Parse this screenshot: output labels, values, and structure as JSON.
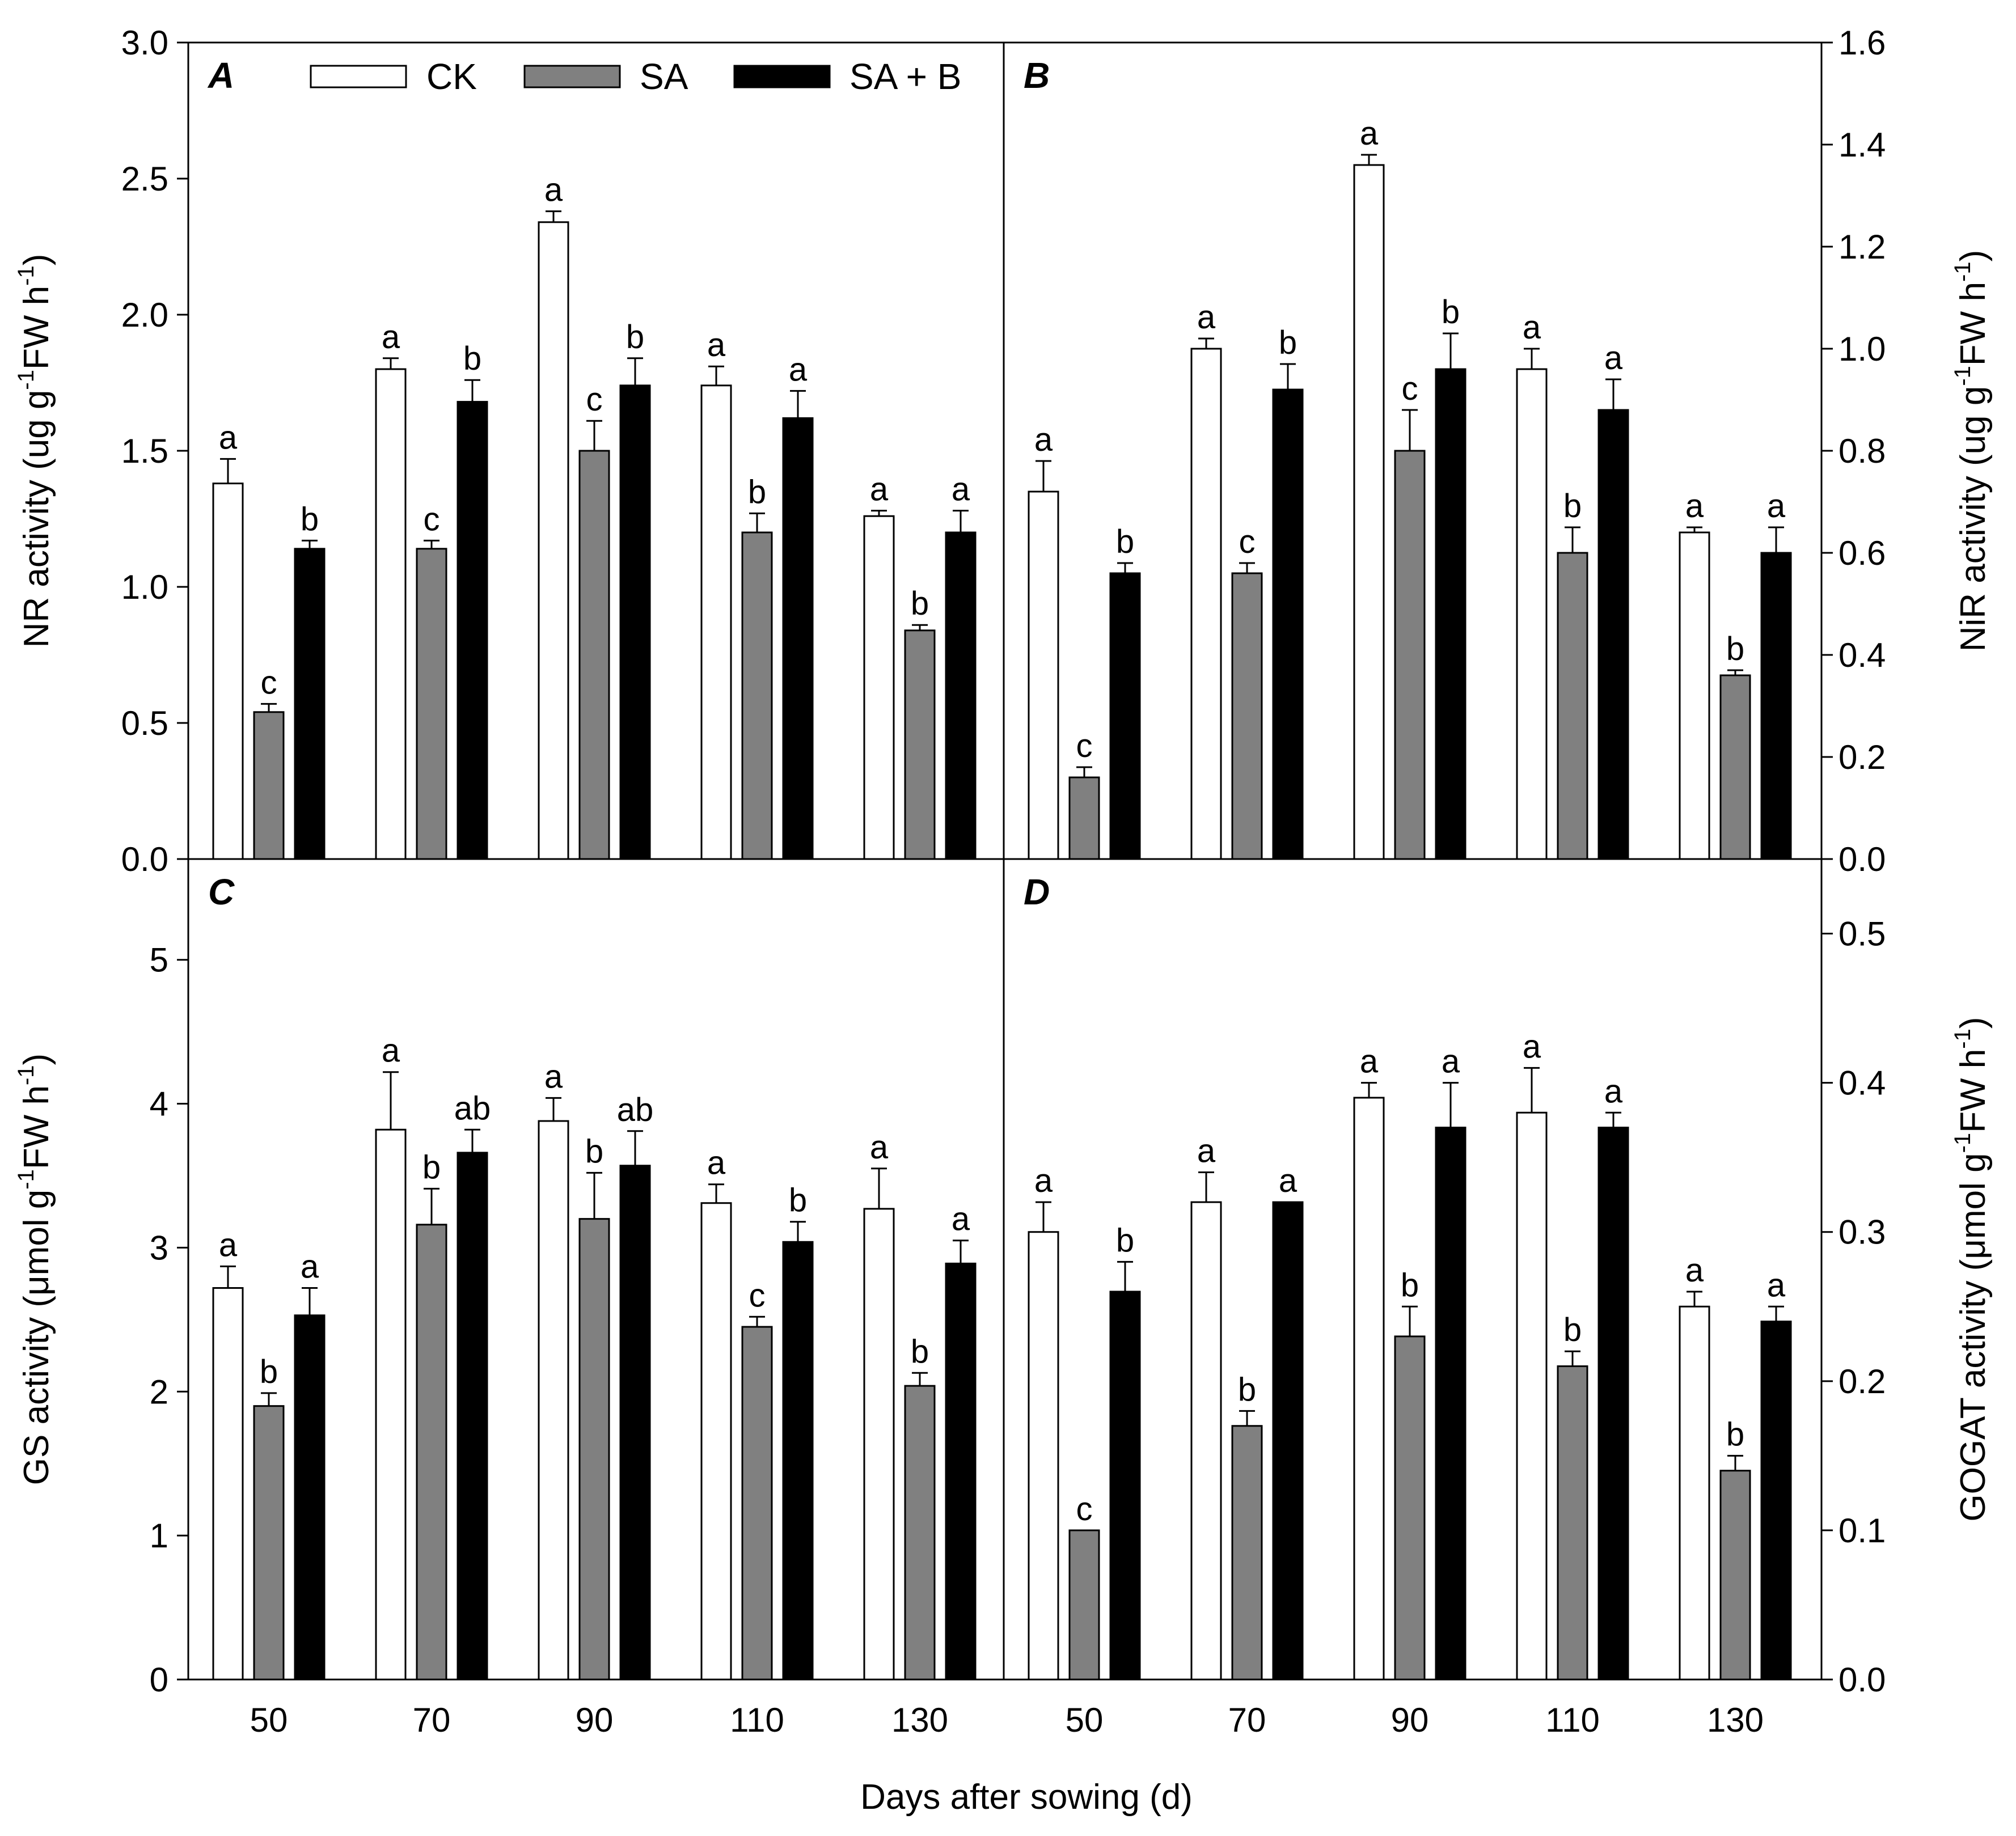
{
  "figure": {
    "xlabel": "Days after sowing (d)"
  },
  "legend": [
    {
      "name": "CK",
      "color": "#ffffff"
    },
    {
      "name": "SA",
      "color": "#808080"
    },
    {
      "name": "SA + B",
      "color": "#000000"
    }
  ],
  "chart_data": [
    {
      "panel": "A",
      "type": "bar",
      "ylabel_main": "NR activity (ug g",
      "ylabel_unit": "FW h",
      "ylabel_sup": "-1",
      "ylim": [
        0,
        3.0
      ],
      "yticks": [
        "0.0",
        "0.5",
        "1.0",
        "1.5",
        "2.0",
        "2.5",
        "3.0"
      ],
      "categories": [
        "50",
        "70",
        "90",
        "110",
        "130"
      ],
      "series": [
        {
          "name": "CK",
          "values": [
            1.38,
            1.8,
            2.34,
            1.74,
            1.26
          ],
          "errors": [
            0.09,
            0.04,
            0.04,
            0.07,
            0.02
          ],
          "letters": [
            "a",
            "a",
            "a",
            "a",
            "a"
          ]
        },
        {
          "name": "SA",
          "values": [
            0.54,
            1.14,
            1.5,
            1.2,
            0.84
          ],
          "errors": [
            0.03,
            0.03,
            0.11,
            0.07,
            0.02
          ],
          "letters": [
            "c",
            "c",
            "c",
            "b",
            "b"
          ]
        },
        {
          "name": "SA + B",
          "values": [
            1.14,
            1.68,
            1.74,
            1.62,
            1.2
          ],
          "errors": [
            0.03,
            0.08,
            0.1,
            0.1,
            0.08
          ],
          "letters": [
            "b",
            "b",
            "b",
            "a",
            "a"
          ]
        }
      ]
    },
    {
      "panel": "B",
      "type": "bar",
      "ylabel_main": "NiR activity (ug g",
      "ylabel_unit": "FW h",
      "ylabel_sup": "-1",
      "ylim": [
        0,
        1.6
      ],
      "yticks": [
        "0.0",
        "0.2",
        "0.4",
        "0.6",
        "0.8",
        "1.0",
        "1.2",
        "1.4",
        "1.6"
      ],
      "categories": [
        "50",
        "70",
        "90",
        "110",
        "130"
      ],
      "series": [
        {
          "name": "CK",
          "values": [
            0.72,
            1.0,
            1.36,
            0.96,
            0.64
          ],
          "errors": [
            0.06,
            0.02,
            0.02,
            0.04,
            0.01
          ],
          "letters": [
            "a",
            "a",
            "a",
            "a",
            "a"
          ]
        },
        {
          "name": "SA",
          "values": [
            0.16,
            0.56,
            0.8,
            0.6,
            0.36
          ],
          "errors": [
            0.02,
            0.02,
            0.08,
            0.05,
            0.01
          ],
          "letters": [
            "c",
            "c",
            "c",
            "b",
            "b"
          ]
        },
        {
          "name": "SA + B",
          "values": [
            0.56,
            0.92,
            0.96,
            0.88,
            0.6
          ],
          "errors": [
            0.02,
            0.05,
            0.07,
            0.06,
            0.05
          ],
          "letters": [
            "b",
            "b",
            "b",
            "a",
            "a"
          ]
        }
      ]
    },
    {
      "panel": "C",
      "type": "bar",
      "ylabel_main": "GS activity (μmol g",
      "ylabel_unit": "FW h",
      "ylabel_sup": "-1",
      "ylim": [
        0,
        5.7
      ],
      "yticks": [
        "0",
        "1",
        "2",
        "3",
        "4",
        "5"
      ],
      "categories": [
        "50",
        "70",
        "90",
        "110",
        "130"
      ],
      "series": [
        {
          "name": "CK",
          "values": [
            2.72,
            3.82,
            3.88,
            3.31,
            3.27
          ],
          "errors": [
            0.15,
            0.4,
            0.16,
            0.13,
            0.28
          ],
          "letters": [
            "a",
            "a",
            "a",
            "a",
            "a"
          ]
        },
        {
          "name": "SA",
          "values": [
            1.9,
            3.16,
            3.2,
            2.45,
            2.04
          ],
          "errors": [
            0.09,
            0.25,
            0.32,
            0.07,
            0.09
          ],
          "letters": [
            "b",
            "b",
            "b",
            "c",
            "b"
          ]
        },
        {
          "name": "SA + B",
          "values": [
            2.53,
            3.66,
            3.57,
            3.04,
            2.89
          ],
          "errors": [
            0.19,
            0.16,
            0.24,
            0.14,
            0.16
          ],
          "letters": [
            "a",
            "ab",
            "ab",
            "b",
            "a"
          ]
        }
      ]
    },
    {
      "panel": "D",
      "type": "bar",
      "ylabel_main": "GOGAT activity (μmol g",
      "ylabel_unit": "FW h",
      "ylabel_sup": "-1",
      "ylim": [
        0,
        0.55
      ],
      "yticks": [
        "0.0",
        "0.1",
        "0.2",
        "0.3",
        "0.4",
        "0.5"
      ],
      "categories": [
        "50",
        "70",
        "90",
        "110",
        "130"
      ],
      "series": [
        {
          "name": "CK",
          "values": [
            0.3,
            0.32,
            0.39,
            0.38,
            0.25
          ],
          "errors": [
            0.02,
            0.02,
            0.01,
            0.03,
            0.01
          ],
          "letters": [
            "a",
            "a",
            "a",
            "a",
            "a"
          ]
        },
        {
          "name": "SA",
          "values": [
            0.1,
            0.17,
            0.23,
            0.21,
            0.14
          ],
          "errors": [
            0.0,
            0.01,
            0.02,
            0.01,
            0.01
          ],
          "letters": [
            "c",
            "b",
            "b",
            "b",
            "b"
          ]
        },
        {
          "name": "SA + B",
          "values": [
            0.26,
            0.32,
            0.37,
            0.37,
            0.24
          ],
          "errors": [
            0.02,
            0.0,
            0.03,
            0.01,
            0.01
          ],
          "letters": [
            "b",
            "a",
            "a",
            "a",
            "a"
          ]
        }
      ]
    }
  ]
}
